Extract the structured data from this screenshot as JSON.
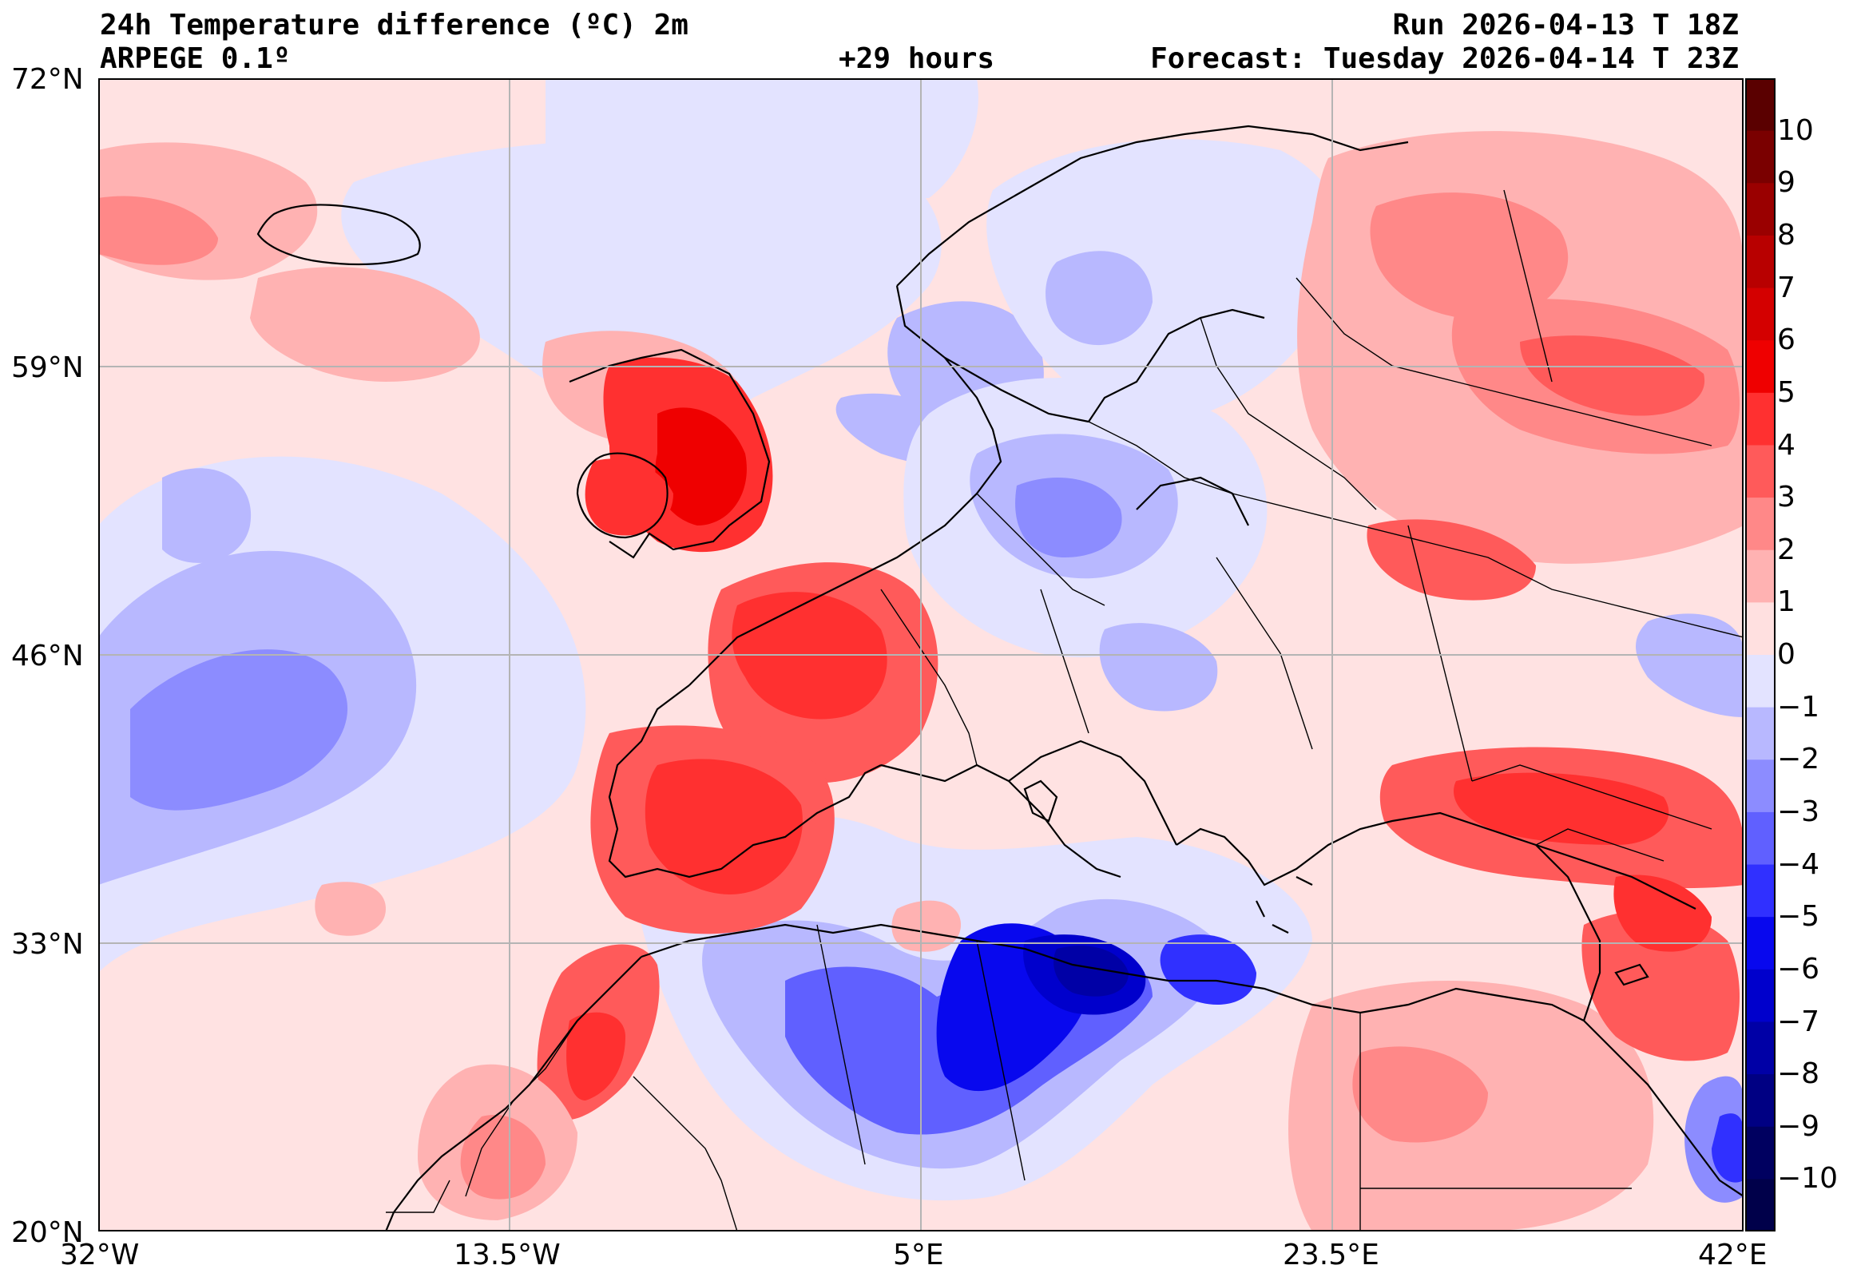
{
  "header": {
    "title": "24h Temperature difference (ºC) 2m",
    "model": "ARPEGE 0.1º",
    "lead": "+29 hours",
    "run": "Run 2026-04-13 T 18Z",
    "forecast": "Forecast: Tuesday 2026-04-14 T 23Z"
  },
  "axes": {
    "lat_labels": [
      "72°N",
      "59°N",
      "46°N",
      "33°N",
      "20°N"
    ],
    "lon_labels": [
      "32°W",
      "13.5°W",
      "5°E",
      "23.5°E",
      "42°E"
    ]
  },
  "colorbar": {
    "labels": [
      "10",
      "9",
      "8",
      "7",
      "6",
      "5",
      "4",
      "3",
      "2",
      "1",
      "0",
      "−1",
      "−2",
      "−3",
      "−4",
      "−5",
      "−6",
      "−7",
      "−8",
      "−9",
      "−10"
    ],
    "colors": [
      "#5a0000",
      "#7a0000",
      "#9a0000",
      "#b80000",
      "#d40000",
      "#ef0000",
      "#ff3030",
      "#ff5a5a",
      "#ff8888",
      "#ffb2b2",
      "#ffe0e0",
      "#e3e3ff",
      "#b8b8ff",
      "#8c8cff",
      "#6060ff",
      "#3030ff",
      "#0808ee",
      "#0000cc",
      "#0000a6",
      "#000083",
      "#000060",
      "#00004a"
    ]
  },
  "colors": {
    "background": "#ffe2e2",
    "coast": "#000000",
    "grid": "#b4b4b4"
  }
}
